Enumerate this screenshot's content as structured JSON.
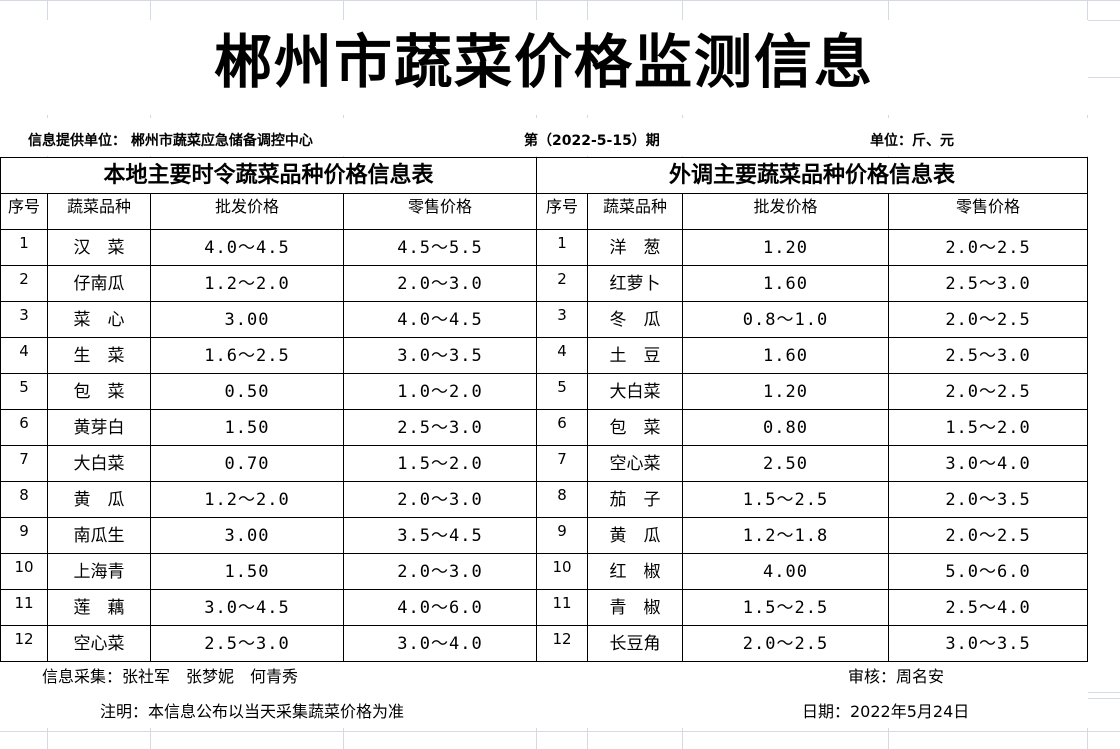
{
  "title": "郴州市蔬菜价格监测信息",
  "info": {
    "provider": "信息提供单位：  郴州市蔬菜应急储备调控中心",
    "issue": "第（2022-5-15）期",
    "unit": "单位：斤、元"
  },
  "local": {
    "heading": "本地主要时令蔬菜品种价格信息表",
    "columns": [
      "序号",
      "蔬菜品种",
      "批发价格",
      "零售价格"
    ],
    "rows": [
      [
        "1",
        "汉　菜",
        "4.0～4.5",
        "4.5～5.5"
      ],
      [
        "2",
        "仔南瓜",
        "1.2～2.0",
        "2.0～3.0"
      ],
      [
        "3",
        "菜　心",
        "3.00",
        "4.0～4.5"
      ],
      [
        "4",
        "生　菜",
        "1.6～2.5",
        "3.0～3.5"
      ],
      [
        "5",
        "包　菜",
        "0.50",
        "1.0～2.0"
      ],
      [
        "6",
        "黄芽白",
        "1.50",
        "2.5～3.0"
      ],
      [
        "7",
        "大白菜",
        "0.70",
        "1.5～2.0"
      ],
      [
        "8",
        "黄　瓜",
        "1.2～2.0",
        "2.0～3.0"
      ],
      [
        "9",
        "南瓜生",
        "3.00",
        "3.5～4.5"
      ],
      [
        "10",
        "上海青",
        "1.50",
        "2.0～3.0"
      ],
      [
        "11",
        "莲　藕",
        "3.0～4.5",
        "4.0～6.0"
      ],
      [
        "12",
        "空心菜",
        "2.5～3.0",
        "3.0～4.0"
      ]
    ]
  },
  "external": {
    "heading": "外调主要蔬菜品种价格信息表",
    "columns": [
      "序号",
      "蔬菜品种",
      "批发价格",
      "零售价格"
    ],
    "rows": [
      [
        "1",
        "洋　葱",
        "1.20",
        "2.0～2.5"
      ],
      [
        "2",
        "红萝卜",
        "1.60",
        "2.5～3.0"
      ],
      [
        "3",
        "冬　瓜",
        "0.8～1.0",
        "2.0～2.5"
      ],
      [
        "4",
        "土　豆",
        "1.60",
        "2.5～3.0"
      ],
      [
        "5",
        "大白菜",
        "1.20",
        "2.0～2.5"
      ],
      [
        "6",
        "包　菜",
        "0.80",
        "1.5～2.0"
      ],
      [
        "7",
        "空心菜",
        "2.50",
        "3.0～4.0"
      ],
      [
        "8",
        "茄　子",
        "1.5～2.5",
        "2.0～3.5"
      ],
      [
        "9",
        "黄　瓜",
        "1.2～1.8",
        "2.0～2.5"
      ],
      [
        "10",
        "红　椒",
        "4.00",
        "5.0～6.0"
      ],
      [
        "11",
        "青　椒",
        "1.5～2.5",
        "2.5～4.0"
      ],
      [
        "12",
        "长豆角",
        "2.0～2.5",
        "3.0～3.5"
      ]
    ]
  },
  "footer": {
    "collectors": "信息采集：张社军　张梦妮　何青秀",
    "reviewer": "审核：周名安",
    "note": "注明：本信息公布以当天采集蔬菜价格为准",
    "date": "日期：2022年5月24日"
  }
}
